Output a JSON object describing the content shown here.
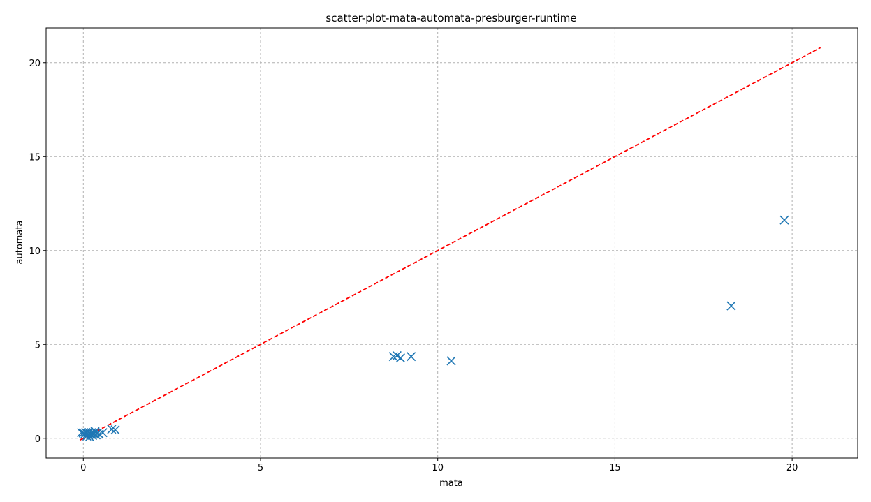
{
  "chart_data": {
    "type": "scatter",
    "title": "scatter-plot-mata-automata-presburger-runtime",
    "xlabel": "mata",
    "ylabel": "automata",
    "xlim": [
      -1.05,
      21.85
    ],
    "ylim": [
      -1.05,
      21.85
    ],
    "x_ticks": [
      0,
      5,
      10,
      15,
      20
    ],
    "y_ticks": [
      0,
      5,
      10,
      15,
      20
    ],
    "x_tick_labels": [
      "0",
      "5",
      "10",
      "15",
      "20"
    ],
    "y_tick_labels": [
      "0",
      "5",
      "10",
      "15",
      "20"
    ],
    "grid": true,
    "marker": "x",
    "colors": {
      "points": "#1f77b4",
      "diagonal": "#ff0000",
      "grid": "#b0b0b0",
      "axes": "#000000"
    },
    "diagonal": {
      "style": "dashed",
      "from": [
        -0.1,
        -0.1
      ],
      "to": [
        20.8,
        20.8
      ]
    },
    "points": [
      {
        "x": -0.05,
        "y": 0.3
      },
      {
        "x": 0.0,
        "y": 0.28
      },
      {
        "x": 0.04,
        "y": 0.22
      },
      {
        "x": 0.07,
        "y": 0.31
      },
      {
        "x": 0.1,
        "y": 0.12
      },
      {
        "x": 0.12,
        "y": 0.26
      },
      {
        "x": 0.15,
        "y": 0.33
      },
      {
        "x": 0.18,
        "y": 0.08
      },
      {
        "x": 0.2,
        "y": 0.2
      },
      {
        "x": 0.23,
        "y": 0.3
      },
      {
        "x": 0.26,
        "y": 0.15
      },
      {
        "x": 0.3,
        "y": 0.25
      },
      {
        "x": 0.33,
        "y": 0.35
      },
      {
        "x": 0.36,
        "y": 0.18
      },
      {
        "x": 0.4,
        "y": 0.28
      },
      {
        "x": 0.45,
        "y": 0.22
      },
      {
        "x": 0.55,
        "y": 0.3
      },
      {
        "x": 0.8,
        "y": 0.48
      },
      {
        "x": 0.9,
        "y": 0.45
      },
      {
        "x": 8.75,
        "y": 4.35
      },
      {
        "x": 8.85,
        "y": 4.4
      },
      {
        "x": 8.95,
        "y": 4.28
      },
      {
        "x": 9.25,
        "y": 4.35
      },
      {
        "x": 10.38,
        "y": 4.12
      },
      {
        "x": 18.28,
        "y": 7.05
      },
      {
        "x": 19.78,
        "y": 11.62
      }
    ]
  }
}
